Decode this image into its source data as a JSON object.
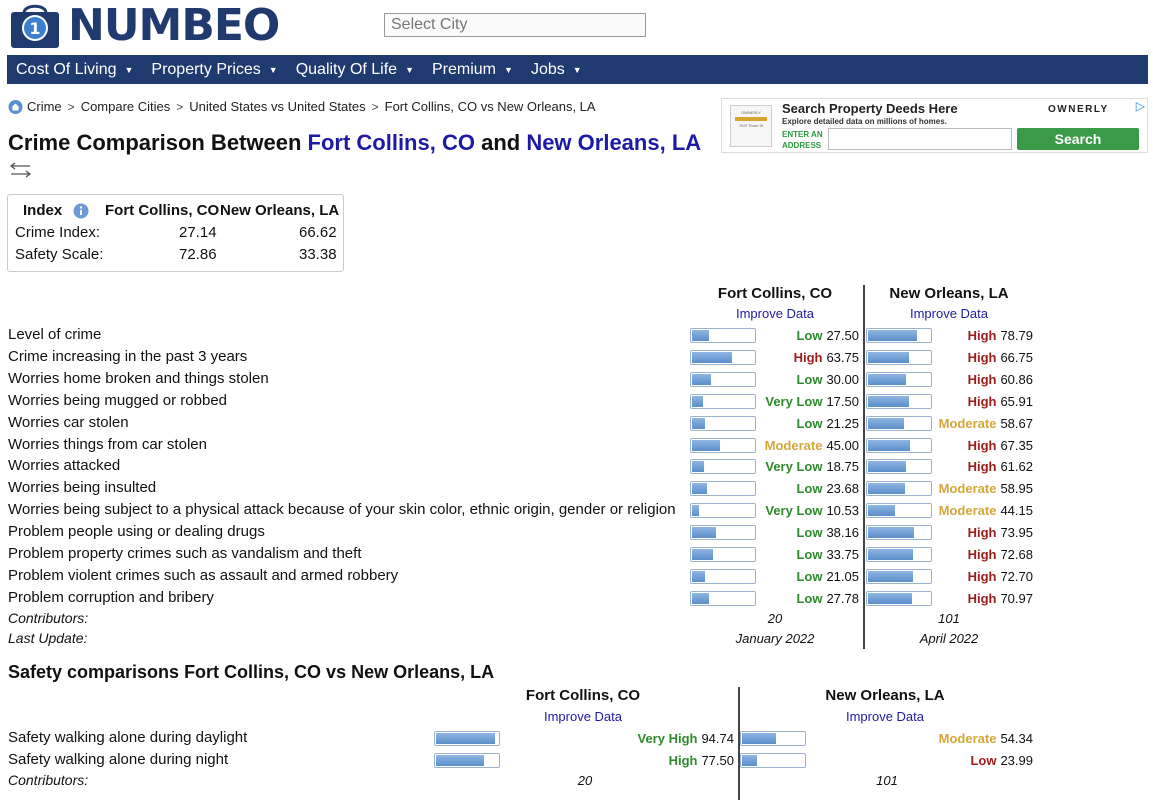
{
  "brand": {
    "name": "NUMBEO"
  },
  "search": {
    "placeholder": "Select City"
  },
  "nav": [
    {
      "label": "Cost Of Living"
    },
    {
      "label": "Property Prices"
    },
    {
      "label": "Quality Of Life"
    },
    {
      "label": "Premium"
    },
    {
      "label": "Jobs"
    }
  ],
  "breadcrumb": [
    "Crime",
    "Compare Cities",
    "United States vs United States",
    "Fort Collins, CO vs New Orleans, LA"
  ],
  "ad": {
    "title": "Search Property Deeds Here",
    "subtitle": "Explore detailed data on millions of homes.",
    "enter_line1": "ENTER AN",
    "enter_line2": "ADDRESS",
    "button": "Search",
    "brand": "OWNERLY",
    "thumb_brand": "OWNERLY",
    "thumb_line": "7637 Rose St"
  },
  "title": {
    "prefix": "Crime Comparison Between ",
    "city1": "Fort Collins, CO",
    "mid": " and ",
    "city2": "New Orleans, LA"
  },
  "index_table": {
    "header": "Index",
    "city1": "Fort Collins, CO",
    "city2": "New Orleans, LA",
    "rows": [
      {
        "label": "Crime Index:",
        "v1": "27.14",
        "v2": "66.62"
      },
      {
        "label": "Safety Scale:",
        "v1": "72.86",
        "v2": "33.38"
      }
    ]
  },
  "crime": {
    "city1": "Fort Collins, CO",
    "city2": "New Orleans, LA",
    "improve": "Improve Data",
    "rows": [
      {
        "label": "Level of crime",
        "l1": "Low",
        "c1": "#2e8b2e",
        "v1": "27.50",
        "p1": 27.5,
        "l2": "High",
        "c2": "#9b1c1c",
        "v2": "78.79",
        "p2": 78.79
      },
      {
        "label": "Crime increasing in the past 3 years",
        "l1": "High",
        "c1": "#9b1c1c",
        "v1": "63.75",
        "p1": 63.75,
        "l2": "High",
        "c2": "#9b1c1c",
        "v2": "66.75",
        "p2": 66.75
      },
      {
        "label": "Worries home broken and things stolen",
        "l1": "Low",
        "c1": "#2e8b2e",
        "v1": "30.00",
        "p1": 30.0,
        "l2": "High",
        "c2": "#9b1c1c",
        "v2": "60.86",
        "p2": 60.86
      },
      {
        "label": "Worries being mugged or robbed",
        "l1": "Very Low",
        "c1": "#2e8b2e",
        "v1": "17.50",
        "p1": 17.5,
        "l2": "High",
        "c2": "#9b1c1c",
        "v2": "65.91",
        "p2": 65.91
      },
      {
        "label": "Worries car stolen",
        "l1": "Low",
        "c1": "#2e8b2e",
        "v1": "21.25",
        "p1": 21.25,
        "l2": "Moderate",
        "c2": "#d4a73a",
        "v2": "58.67",
        "p2": 58.67
      },
      {
        "label": "Worries things from car stolen",
        "l1": "Moderate",
        "c1": "#d4a73a",
        "v1": "45.00",
        "p1": 45.0,
        "l2": "High",
        "c2": "#9b1c1c",
        "v2": "67.35",
        "p2": 67.35
      },
      {
        "label": "Worries attacked",
        "l1": "Very Low",
        "c1": "#2e8b2e",
        "v1": "18.75",
        "p1": 18.75,
        "l2": "High",
        "c2": "#9b1c1c",
        "v2": "61.62",
        "p2": 61.62
      },
      {
        "label": "Worries being insulted",
        "l1": "Low",
        "c1": "#2e8b2e",
        "v1": "23.68",
        "p1": 23.68,
        "l2": "Moderate",
        "c2": "#d4a73a",
        "v2": "58.95",
        "p2": 58.95
      },
      {
        "label": "Worries being subject to a physical attack because of your skin color, ethnic origin, gender or religion",
        "l1": "Very Low",
        "c1": "#2e8b2e",
        "v1": "10.53",
        "p1": 10.53,
        "l2": "Moderate",
        "c2": "#d4a73a",
        "v2": "44.15",
        "p2": 44.15
      },
      {
        "label": "Problem people using or dealing drugs",
        "l1": "Low",
        "c1": "#2e8b2e",
        "v1": "38.16",
        "p1": 38.16,
        "l2": "High",
        "c2": "#9b1c1c",
        "v2": "73.95",
        "p2": 73.95
      },
      {
        "label": "Problem property crimes such as vandalism and theft",
        "l1": "Low",
        "c1": "#2e8b2e",
        "v1": "33.75",
        "p1": 33.75,
        "l2": "High",
        "c2": "#9b1c1c",
        "v2": "72.68",
        "p2": 72.68
      },
      {
        "label": "Problem violent crimes such as assault and armed robbery",
        "l1": "Low",
        "c1": "#2e8b2e",
        "v1": "21.05",
        "p1": 21.05,
        "l2": "High",
        "c2": "#9b1c1c",
        "v2": "72.70",
        "p2": 72.7
      },
      {
        "label": "Problem corruption and bribery",
        "l1": "Low",
        "c1": "#2e8b2e",
        "v1": "27.78",
        "p1": 27.78,
        "l2": "High",
        "c2": "#9b1c1c",
        "v2": "70.97",
        "p2": 70.97
      }
    ],
    "contributors_label": "Contributors:",
    "contributors1": "20",
    "contributors2": "101",
    "last_update_label": "Last Update:",
    "last_update1": "January 2022",
    "last_update2": "April 2022"
  },
  "safety": {
    "title": "Safety comparisons Fort Collins, CO vs New Orleans, LA",
    "city1": "Fort Collins, CO",
    "city2": "New Orleans, LA",
    "improve": "Improve Data",
    "rows": [
      {
        "label": "Safety walking alone during daylight",
        "l1": "Very High",
        "c1": "#2e8b2e",
        "v1": "94.74",
        "p1": 94.74,
        "l2": "Moderate",
        "c2": "#d4a73a",
        "v2": "54.34",
        "p2": 54.34
      },
      {
        "label": "Safety walking alone during night",
        "l1": "High",
        "c1": "#2e8b2e",
        "v1": "77.50",
        "p1": 77.5,
        "l2": "Low",
        "c2": "#9b1c1c",
        "v2": "23.99",
        "p2": 23.99
      }
    ],
    "contributors_label": "Contributors:",
    "contributors1": "20",
    "contributors2": "101"
  }
}
